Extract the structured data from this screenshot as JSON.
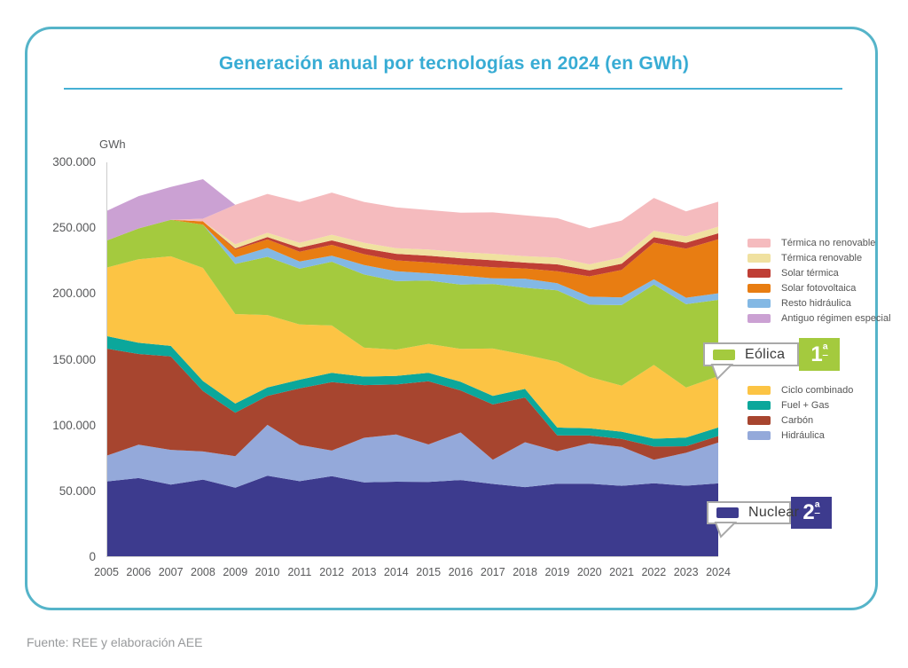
{
  "title": "Generación anual por tecnologías en 2024 (en GWh)",
  "footer_source": "Fuente: REE y elaboración AEE",
  "unit_label": "GWh",
  "axes": {
    "y_ticks": [
      "300.000",
      "250.000",
      "200.000",
      "150.000",
      "100.000",
      "50.000",
      "0"
    ],
    "years": [
      "2005",
      "2006",
      "2007",
      "2008",
      "2009",
      "2010",
      "2011",
      "2012",
      "2013",
      "2014",
      "2015",
      "2016",
      "2017",
      "2018",
      "2019",
      "2020",
      "2021",
      "2022",
      "2023",
      "2024"
    ]
  },
  "chart_data": {
    "type": "area",
    "stacked": true,
    "title": "Generación anual por tecnologías en 2024 (en GWh)",
    "xlabel": "",
    "ylabel": "GWh",
    "ylim": [
      0,
      300000
    ],
    "grid": false,
    "legend_position": "right",
    "x": [
      2005,
      2006,
      2007,
      2008,
      2009,
      2010,
      2011,
      2012,
      2013,
      2014,
      2015,
      2016,
      2017,
      2018,
      2019,
      2020,
      2021,
      2022,
      2023,
      2024
    ],
    "series": [
      {
        "id": "nuclear",
        "name": "Nuclear",
        "color": "#3d3b8e",
        "values": [
          57500,
          60100,
          55100,
          58900,
          52800,
          61800,
          57700,
          61500,
          56800,
          57300,
          57200,
          58600,
          55600,
          53200,
          55800,
          55800,
          54200,
          56100,
          54300,
          56000
        ]
      },
      {
        "id": "hidraulica",
        "name": "Hidráulica",
        "color": "#94a9da",
        "values": [
          19500,
          25300,
          26400,
          21400,
          23900,
          38700,
          27600,
          19500,
          33900,
          35900,
          28400,
          36100,
          18400,
          34100,
          24700,
          30600,
          29600,
          17900,
          25000,
          31000
        ]
      },
      {
        "id": "carbon",
        "name": "Carbón",
        "color": "#a7452f",
        "values": [
          81500,
          69000,
          71000,
          46000,
          33000,
          22000,
          43000,
          52000,
          40000,
          38000,
          48000,
          32000,
          42000,
          34000,
          12000,
          6000,
          6000,
          10000,
          5000,
          5000
        ]
      },
      {
        "id": "fuel-gas",
        "name": "Fuel + Gas",
        "color": "#0ba79b",
        "values": [
          9500,
          8500,
          8000,
          7500,
          7000,
          6500,
          6500,
          7000,
          6500,
          6500,
          6500,
          6500,
          6500,
          6500,
          6000,
          5500,
          5500,
          6000,
          6500,
          6500
        ]
      },
      {
        "id": "ciclo-combinado",
        "name": "Ciclo combinado",
        "color": "#fcc444",
        "values": [
          52000,
          63500,
          68100,
          86000,
          68000,
          55000,
          42000,
          36000,
          22000,
          20000,
          22000,
          25000,
          36000,
          26000,
          50000,
          39000,
          35000,
          56000,
          38000,
          39000
        ]
      },
      {
        "id": "eolica",
        "name": "Eólica",
        "color": "#a4ca3e",
        "values": [
          20500,
          23400,
          27700,
          32900,
          38100,
          44200,
          42400,
          48500,
          55600,
          52000,
          48100,
          48900,
          49100,
          50900,
          54200,
          54900,
          61200,
          61100,
          63400,
          58000
        ]
      },
      {
        "id": "resto-hidraulica",
        "name": "Resto hidráulica",
        "color": "#83b8e4",
        "values": [
          0,
          0,
          0,
          0,
          5000,
          6800,
          5500,
          4600,
          7100,
          7600,
          5500,
          6900,
          4200,
          6900,
          5400,
          6100,
          5900,
          4000,
          4900,
          5000
        ]
      },
      {
        "id": "solar-fotovoltaica",
        "name": "Solar fotovoltaica",
        "color": "#e87d12",
        "values": [
          0,
          0,
          0,
          2500,
          6000,
          6400,
          7400,
          8200,
          8300,
          8200,
          8300,
          8000,
          8500,
          7800,
          9200,
          15500,
          20900,
          27900,
          37300,
          41000
        ]
      },
      {
        "id": "solar-termica",
        "name": "Solar térmica",
        "color": "#bf3e35",
        "values": [
          0,
          0,
          0,
          0,
          800,
          1800,
          3000,
          3400,
          4400,
          5000,
          5100,
          5100,
          5300,
          4400,
          5200,
          4500,
          4700,
          4100,
          4500,
          4600
        ]
      },
      {
        "id": "termica-renovable",
        "name": "Térmica renovable",
        "color": "#f0e1a0",
        "values": [
          0,
          0,
          0,
          0,
          3100,
          3300,
          3800,
          4300,
          4300,
          4300,
          4600,
          4700,
          4900,
          4900,
          5100,
          4600,
          4800,
          4900,
          4900,
          5000
        ]
      },
      {
        "id": "termica-no-renovable",
        "name": "Térmica no renovable",
        "color": "#f5bbbe",
        "values": [
          0,
          0,
          0,
          2000,
          30000,
          29500,
          31000,
          32000,
          31000,
          31000,
          30000,
          30000,
          31500,
          31000,
          30000,
          27500,
          28000,
          25000,
          19000,
          19000
        ]
      },
      {
        "id": "antiguo-regimen-especial",
        "name": "Antiguo régimen especial",
        "color": "#cba1d3",
        "values": [
          22500,
          24500,
          25000,
          30000,
          0,
          0,
          0,
          0,
          0,
          0,
          0,
          0,
          0,
          0,
          0,
          0,
          0,
          0,
          0,
          0
        ]
      }
    ]
  },
  "legend": {
    "group_top": [
      {
        "label": "Térmica no renovable",
        "color": "#f5bbbe"
      },
      {
        "label": "Térmica renovable",
        "color": "#f0e1a0"
      },
      {
        "label": "Solar térmica",
        "color": "#bf3e35"
      },
      {
        "label": "Solar fotovoltaica",
        "color": "#e87d12"
      },
      {
        "label": "Resto hidráulica",
        "color": "#83b8e4"
      },
      {
        "label": "Antiguo régimen especial",
        "color": "#cba1d3"
      }
    ],
    "group_bottom": [
      {
        "label": "Ciclo combinado",
        "color": "#fcc444"
      },
      {
        "label": "Fuel + Gas",
        "color": "#0ba79b"
      },
      {
        "label": "Carbón",
        "color": "#a7452f"
      },
      {
        "label": "Hidráulica",
        "color": "#94a9da"
      }
    ]
  },
  "callouts": {
    "eolica": {
      "label": "Eólica",
      "rank": "1",
      "suffix": "ª",
      "color": "#a4ca3e"
    },
    "nuclear": {
      "label": "Nuclear",
      "rank": "2",
      "suffix": "ª",
      "color": "#3d3b8e"
    }
  },
  "colors": {
    "accent_blue": "#38acd4",
    "card_border": "#55b4c9",
    "axis_text": "#58595b",
    "axis_line": "#cccccc"
  }
}
